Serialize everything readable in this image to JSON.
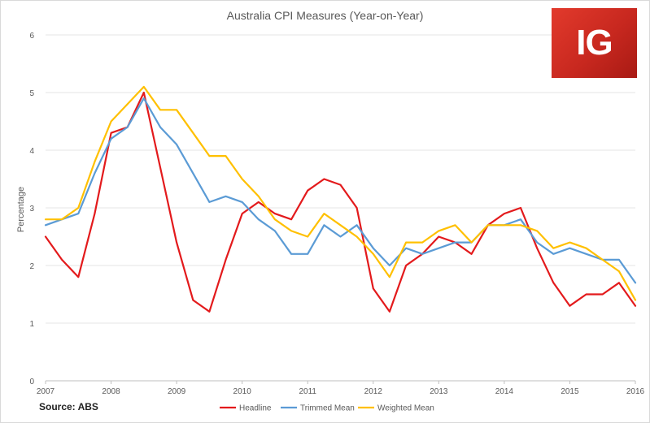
{
  "chart_data": {
    "type": "line",
    "title": "Australia CPI Measures (Year-on-Year)",
    "ylabel": "Percentage",
    "xlim": [
      2007,
      2016
    ],
    "ylim": [
      0,
      6
    ],
    "yticks": [
      0,
      1,
      2,
      3,
      4,
      5,
      6
    ],
    "xticks": [
      2007,
      2008,
      2009,
      2010,
      2011,
      2012,
      2013,
      2014,
      2015,
      2016
    ],
    "grid": true,
    "legend_position": "bottom",
    "x": [
      2007,
      2007.25,
      2007.5,
      2007.75,
      2008,
      2008.25,
      2008.5,
      2008.75,
      2009,
      2009.25,
      2009.5,
      2009.75,
      2010,
      2010.25,
      2010.5,
      2010.75,
      2011,
      2011.25,
      2011.5,
      2011.75,
      2012,
      2012.25,
      2012.5,
      2012.75,
      2013,
      2013.25,
      2013.5,
      2013.75,
      2014,
      2014.25,
      2014.5,
      2014.75,
      2015,
      2015.25,
      2015.5,
      2015.75,
      2016
    ],
    "series": [
      {
        "name": "Headline",
        "color": "#e31a1c",
        "values": [
          2.5,
          2.1,
          1.8,
          2.9,
          4.3,
          4.4,
          5.0,
          3.7,
          2.4,
          1.4,
          1.2,
          2.1,
          2.9,
          3.1,
          2.9,
          2.8,
          3.3,
          3.5,
          3.4,
          3.0,
          1.6,
          1.2,
          2.0,
          2.2,
          2.5,
          2.4,
          2.2,
          2.7,
          2.9,
          3.0,
          2.3,
          1.7,
          1.3,
          1.5,
          1.5,
          1.7,
          1.3
        ]
      },
      {
        "name": "Trimmed Mean",
        "color": "#5b9bd5",
        "values": [
          2.7,
          2.8,
          2.9,
          3.6,
          4.2,
          4.4,
          4.9,
          4.4,
          4.1,
          3.6,
          3.1,
          3.2,
          3.1,
          2.8,
          2.6,
          2.2,
          2.2,
          2.7,
          2.5,
          2.7,
          2.3,
          2.0,
          2.3,
          2.2,
          2.3,
          2.4,
          2.4,
          2.7,
          2.7,
          2.8,
          2.4,
          2.2,
          2.3,
          2.2,
          2.1,
          2.1,
          1.7
        ]
      },
      {
        "name": "Weighted Mean",
        "color": "#ffc000",
        "values": [
          2.8,
          2.8,
          3.0,
          3.8,
          4.5,
          4.8,
          5.1,
          4.7,
          4.7,
          4.3,
          3.9,
          3.9,
          3.5,
          3.2,
          2.8,
          2.6,
          2.5,
          2.9,
          2.7,
          2.5,
          2.2,
          1.8,
          2.4,
          2.4,
          2.6,
          2.7,
          2.4,
          2.7,
          2.7,
          2.7,
          2.6,
          2.3,
          2.4,
          2.3,
          2.1,
          1.9,
          1.4
        ]
      }
    ]
  },
  "source": "Source: ABS",
  "logo": {
    "text": "IG",
    "color": "#d42a20"
  }
}
